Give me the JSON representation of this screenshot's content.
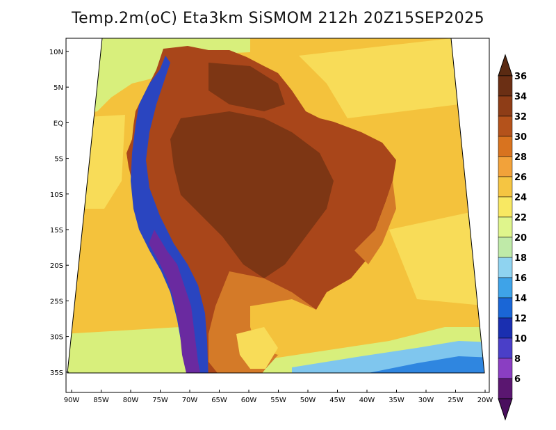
{
  "title": "Temp.2m(oC) Eta3km SiSMOM 212h 20Z15SEP2025",
  "latitude_ticks": [
    "10N",
    "5N",
    "EQ",
    "5S",
    "10S",
    "15S",
    "20S",
    "25S",
    "30S",
    "35S"
  ],
  "longitude_ticks": [
    "90W",
    "85W",
    "80W",
    "75W",
    "70W",
    "65W",
    "60W",
    "55W",
    "50W",
    "45W",
    "40W",
    "35W",
    "30W",
    "25W",
    "20W"
  ],
  "colorbar": {
    "labels": [
      "36",
      "34",
      "32",
      "30",
      "28",
      "26",
      "24",
      "22",
      "20",
      "18",
      "16",
      "14",
      "12",
      "10",
      "8",
      "6"
    ],
    "colors": [
      "#6b2f14",
      "#8e3d17",
      "#b4521b",
      "#d8731f",
      "#f2a23a",
      "#f5c542",
      "#f8e862",
      "#dff58c",
      "#bfeaa8",
      "#8fd3f0",
      "#3ea3e8",
      "#1a66d6",
      "#1a2fb0",
      "#4a3fc8",
      "#8a3ec2",
      "#5a1670"
    ],
    "top_color": "#5a2a12",
    "bottom_color": "#4a0f5e"
  },
  "palette": {
    "ocean_warm": "#f4c23c",
    "ocean_mild": "#f8dc58",
    "ocean_cool": "#d8ef7c",
    "ocean_cold": "#7fc6ee",
    "ocean_colder": "#2f86e0",
    "land_hot": "#a9461a",
    "land_very_hot": "#7d3614",
    "land_warm": "#d47a28",
    "andes_cold": "#2a45c0",
    "andes_very_cold": "#6a2aa0"
  }
}
